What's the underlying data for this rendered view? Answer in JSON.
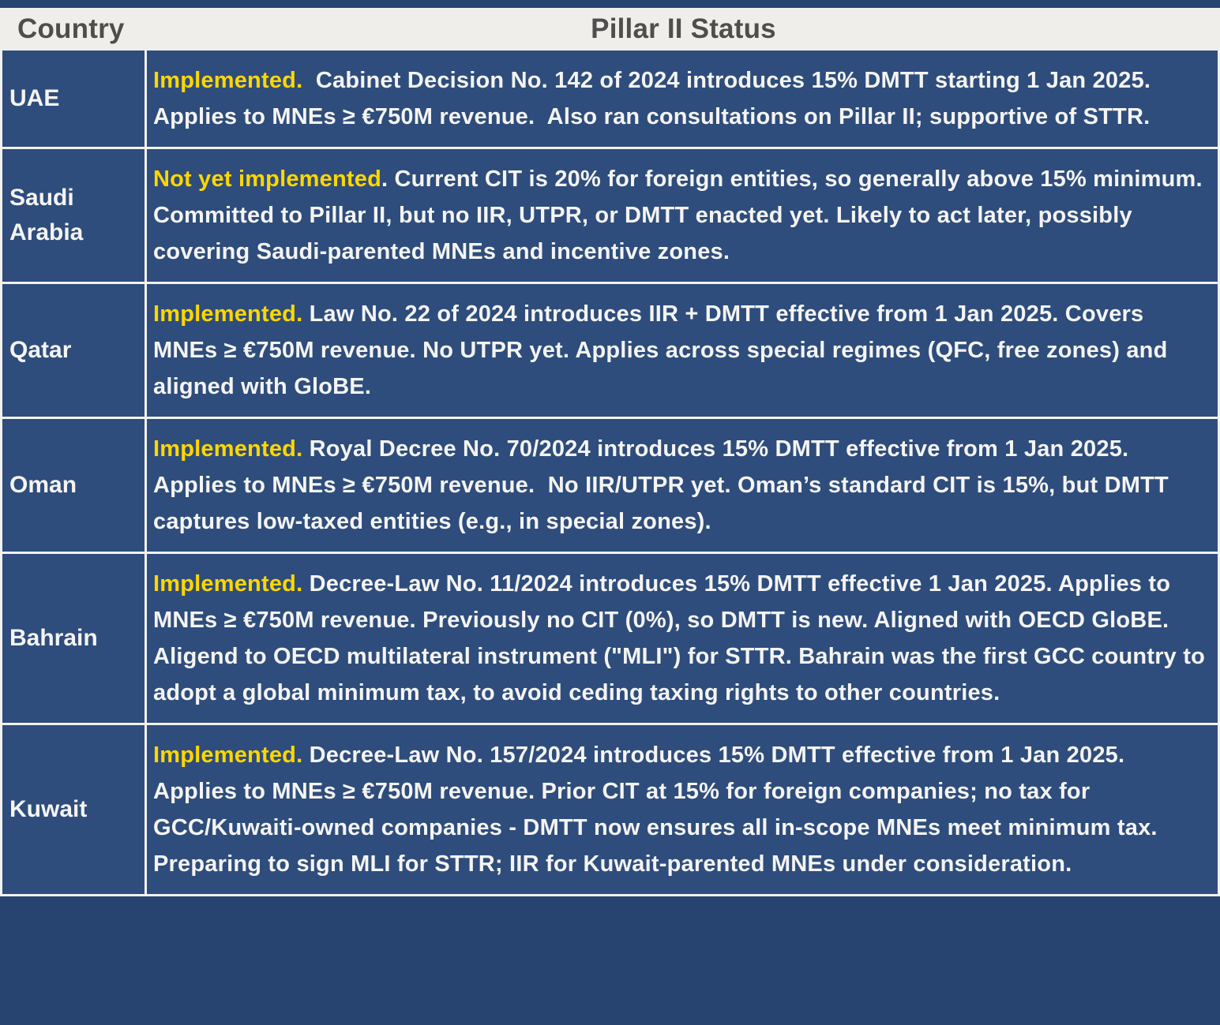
{
  "table": {
    "headers": {
      "country": "Country",
      "status": "Pillar II Status"
    },
    "rows": [
      {
        "country": "UAE",
        "status_highlight": "Implemented.",
        "status_rest": "  Cabinet Decision No. 142 of 2024 introduces 15% DMTT starting 1 Jan 2025.  Applies to MNEs ≥ €750M revenue.  Also ran consultations on Pillar II; supportive of STTR."
      },
      {
        "country": "Saudi Arabia",
        "status_highlight": "Not yet implemented",
        "status_rest": ". Current CIT is 20% for foreign entities, so generally above 15% minimum. Committed to Pillar II, but no IIR, UTPR, or DMTT enacted yet. Likely to act later, possibly covering Saudi-parented MNEs and incentive zones."
      },
      {
        "country": "Qatar",
        "status_highlight": "Implemented.",
        "status_rest": " Law No. 22 of 2024 introduces IIR + DMTT effective from 1 Jan 2025. Covers MNEs ≥ €750M revenue. No UTPR yet. Applies across special regimes (QFC, free zones) and aligned with GloBE."
      },
      {
        "country": "Oman",
        "status_highlight": "Implemented.",
        "status_rest": " Royal Decree No. 70/2024 introduces 15% DMTT effective from 1 Jan 2025.  Applies to MNEs ≥ €750M revenue.  No IIR/UTPR yet. Oman’s standard CIT is 15%, but DMTT captures low-taxed entities (e.g., in special zones)."
      },
      {
        "country": "Bahrain",
        "status_highlight": "Implemented.",
        "status_rest": " Decree-Law No. 11/2024 introduces 15% DMTT effective 1 Jan 2025. Applies to MNEs ≥ €750M revenue. Previously no CIT (0%), so DMTT is new. Aligned with OECD GloBE.  Aligend to OECD multilateral instrument (\"MLI\") for STTR. Bahrain was the first GCC country to adopt a global minimum tax, to avoid ceding taxing rights to other countries."
      },
      {
        "country": "Kuwait",
        "status_highlight": "Implemented.",
        "status_rest": " Decree-Law No. 157/2024 introduces 15% DMTT effective from 1 Jan 2025. Applies to MNEs ≥ €750M revenue. Prior CIT at 15% for foreign companies; no tax for GCC/Kuwaiti-owned companies - DMTT now ensures all in-scope MNEs meet minimum tax.  Preparing to sign MLI for STTR; IIR for Kuwait-parented MNEs under consideration."
      }
    ]
  },
  "colors": {
    "cell_navy": "#2E4D7C",
    "page_navy": "#274370",
    "header_bg": "#F0EEEB",
    "header_text": "#4E4E4C",
    "divider_white": "#F3F2EF",
    "body_text": "#F5F4F2",
    "highlight_yellow": "#FFD700"
  }
}
